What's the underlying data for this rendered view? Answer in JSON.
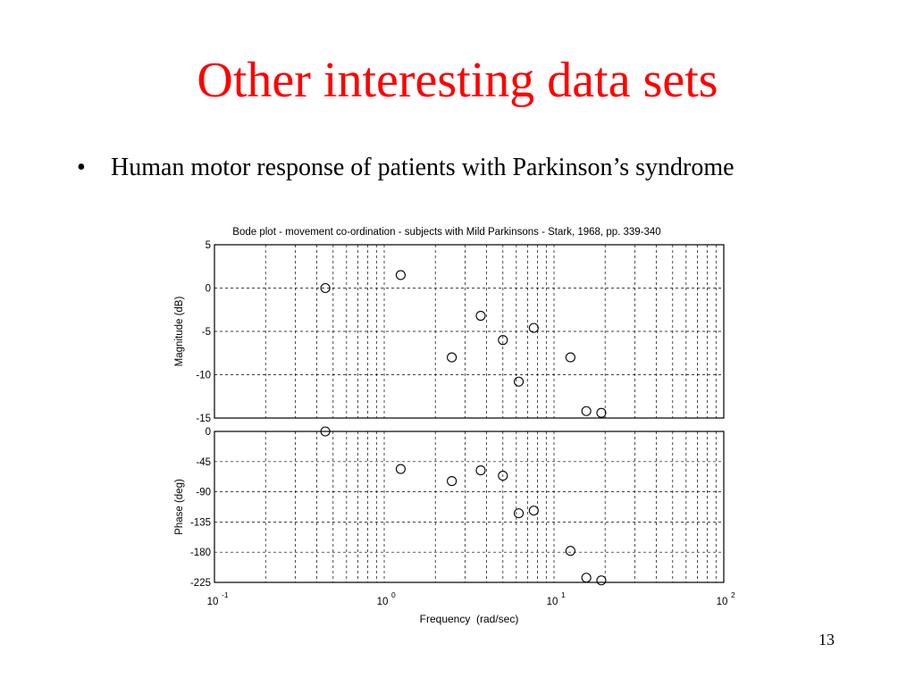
{
  "slide": {
    "title": "Other interesting data sets",
    "bullet": "•",
    "bullet_text": "Human motor response of patients with Parkinson’s syndrome",
    "page_number": "13",
    "title_color": "#ff0000"
  },
  "chart_data": {
    "type": "scatter",
    "title": "Bode plot - movement co-ordination - subjects with Mild Parkinsons - Stark, 1968, pp. 339-340",
    "xlabel": "Frequency  (rad/sec)",
    "x_scale": "log",
    "xlim": [
      0.1,
      100
    ],
    "x_ticks": [
      {
        "value": 0.1,
        "base": "10",
        "exp": "-1"
      },
      {
        "value": 1,
        "base": "10",
        "exp": "0"
      },
      {
        "value": 10,
        "base": "10",
        "exp": "1"
      },
      {
        "value": 100,
        "base": "10",
        "exp": "2"
      }
    ],
    "grid": true,
    "marker": "open-circle",
    "x": [
      0.45,
      1.25,
      2.5,
      3.7,
      5.0,
      6.2,
      7.6,
      12.5,
      15.5,
      19.0
    ],
    "panels": [
      {
        "ylabel": "Magnitude (dB)",
        "ylim": [
          -15,
          5
        ],
        "y_ticks": [
          "5",
          "0",
          "-5",
          "-10",
          "-15"
        ],
        "y_tick_values": [
          5,
          0,
          -5,
          -10,
          -15
        ],
        "values": [
          0,
          1.5,
          -8,
          -3.2,
          -6,
          -10.8,
          -4.6,
          -8,
          -14.2,
          -14.4
        ]
      },
      {
        "ylabel": "Phase (deg)",
        "ylim": [
          -225,
          0
        ],
        "y_ticks": [
          "0",
          "-45",
          "-90",
          "-135",
          "-180",
          "-225"
        ],
        "y_tick_values": [
          0,
          -45,
          -90,
          -135,
          -180,
          -225
        ],
        "values": [
          0,
          -56,
          -74,
          -58,
          -66,
          -122,
          -118,
          -178,
          -218,
          -222
        ]
      }
    ]
  }
}
